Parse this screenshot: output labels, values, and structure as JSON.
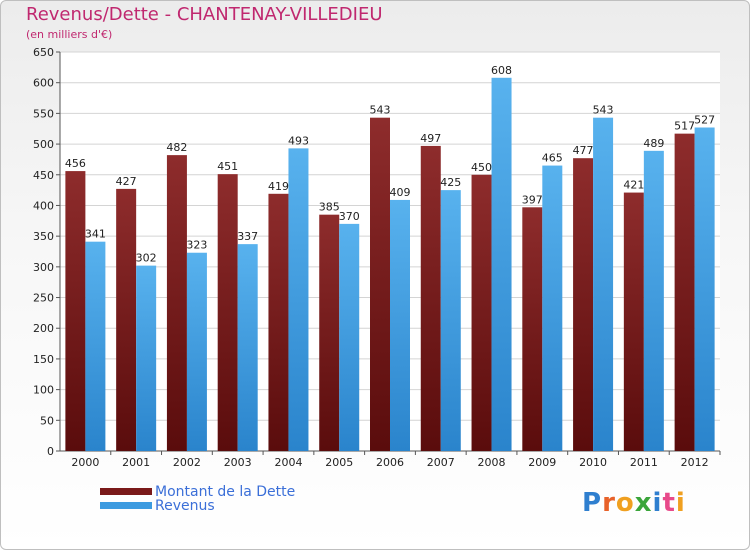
{
  "chart_data": {
    "type": "bar",
    "title": "Revenus/Dette - CHANTENAY-VILLEDIEU",
    "subtitle": "(en milliers d'€)",
    "categories": [
      "2000",
      "2001",
      "2002",
      "2003",
      "2004",
      "2005",
      "2006",
      "2007",
      "2008",
      "2009",
      "2010",
      "2011",
      "2012"
    ],
    "series": [
      {
        "name": "Montant de la Dette",
        "color": "#7a1a1a",
        "values": [
          456,
          427,
          482,
          451,
          419,
          385,
          543,
          497,
          450,
          397,
          477,
          421,
          517
        ]
      },
      {
        "name": "Revenus",
        "color": "#3d9be0",
        "values": [
          341,
          302,
          323,
          337,
          493,
          370,
          409,
          425,
          608,
          465,
          543,
          489,
          527
        ]
      }
    ],
    "ylim": [
      0,
      650
    ],
    "yticks": [
      0,
      50,
      100,
      150,
      200,
      250,
      300,
      350,
      400,
      450,
      500,
      550,
      600,
      650
    ],
    "grid": true,
    "legend_position": "bottom-left"
  },
  "logo": {
    "text": "Proxiti",
    "colors": [
      "#2f7fcf",
      "#e8622a",
      "#f0a020",
      "#3aa53a",
      "#2f7fcf",
      "#e84a8a",
      "#f0a020"
    ]
  }
}
